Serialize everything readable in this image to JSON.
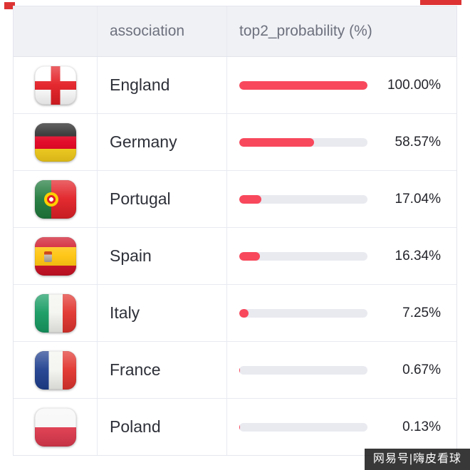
{
  "table": {
    "headers": {
      "association": "association",
      "probability": "top2_probability (%)"
    },
    "rows": [
      {
        "association": "England",
        "flag": "england-flag",
        "value": 100.0,
        "label": "100.00%"
      },
      {
        "association": "Germany",
        "flag": "germany-flag",
        "value": 58.57,
        "label": "58.57%"
      },
      {
        "association": "Portugal",
        "flag": "portugal-flag",
        "value": 17.04,
        "label": "17.04%"
      },
      {
        "association": "Spain",
        "flag": "spain-flag",
        "value": 16.34,
        "label": "16.34%"
      },
      {
        "association": "Italy",
        "flag": "italy-flag",
        "value": 7.25,
        "label": "7.25%"
      },
      {
        "association": "France",
        "flag": "france-flag",
        "value": 0.67,
        "label": "0.67%"
      },
      {
        "association": "Poland",
        "flag": "poland-flag",
        "value": 0.13,
        "label": "0.13%"
      }
    ]
  },
  "watermark": {
    "text": "网易号|嗨皮看球"
  },
  "colors": {
    "bar_fill": "#f8485c",
    "bar_track": "#e9eaf0",
    "header_bg": "#f0f1f5",
    "border": "#e8eaf1",
    "deco_red": "#dd3333"
  },
  "chart_data": {
    "type": "bar",
    "categories": [
      "England",
      "Germany",
      "Portugal",
      "Spain",
      "Italy",
      "France",
      "Poland"
    ],
    "values": [
      100.0,
      58.57,
      17.04,
      16.34,
      7.25,
      0.67,
      0.13
    ],
    "title": "top2_probability (%)",
    "xlabel": "top2_probability (%)",
    "ylabel": "association",
    "xlim": [
      0,
      100
    ],
    "legend": false,
    "grid": false
  }
}
